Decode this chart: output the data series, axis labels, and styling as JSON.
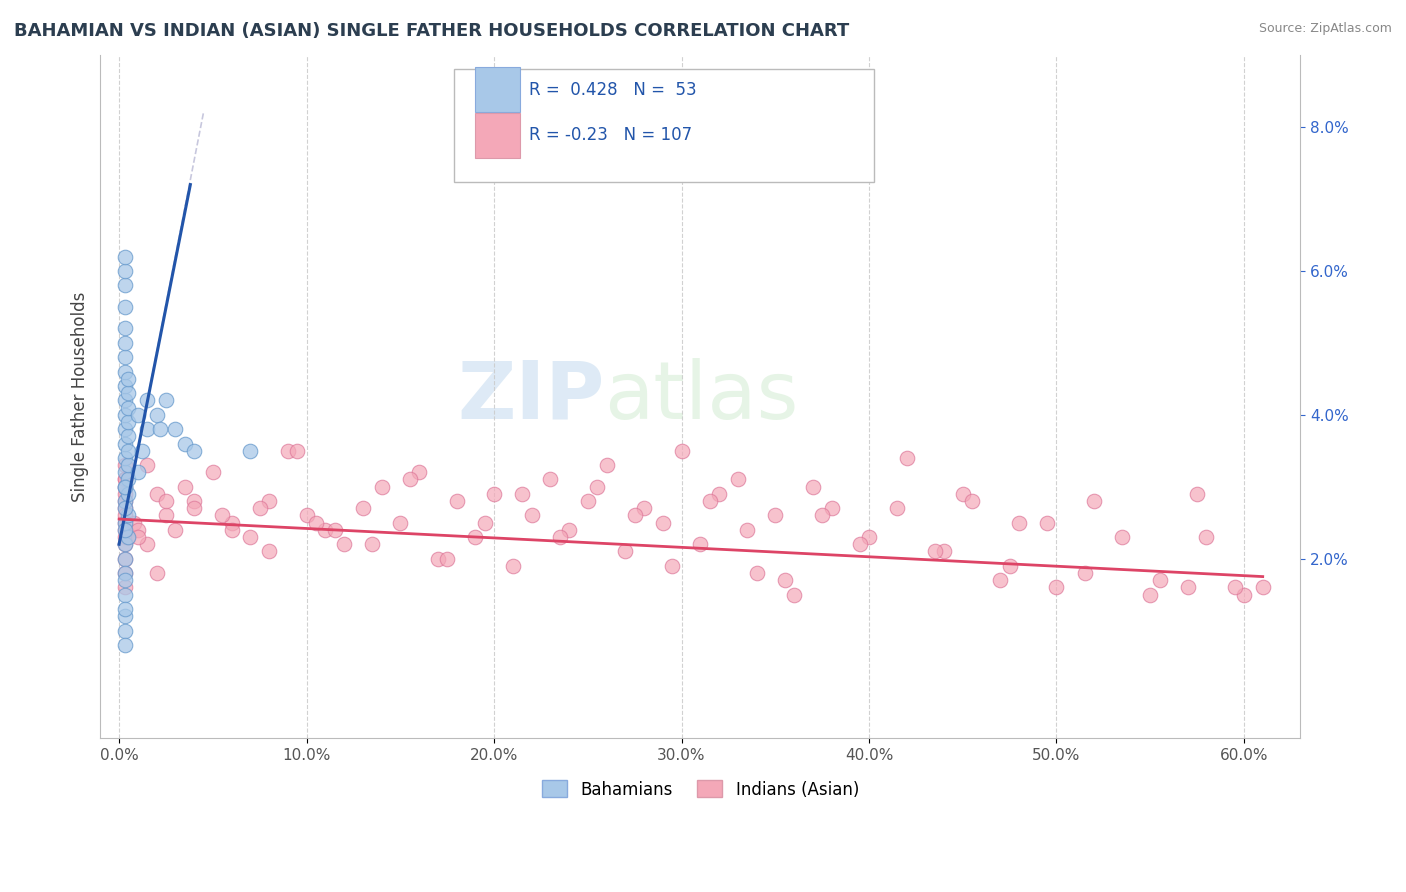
{
  "title": "BAHAMIAN VS INDIAN (ASIAN) SINGLE FATHER HOUSEHOLDS CORRELATION CHART",
  "source": "Source: ZipAtlas.com",
  "ylabel_val": "Single Father Households",
  "x_tick_labels": [
    "0.0%",
    "10.0%",
    "20.0%",
    "30.0%",
    "40.0%",
    "50.0%",
    "60.0%"
  ],
  "x_tick_vals": [
    0,
    10,
    20,
    30,
    40,
    50,
    60
  ],
  "y_tick_labels": [
    "2.0%",
    "4.0%",
    "6.0%",
    "8.0%"
  ],
  "y_tick_vals": [
    2,
    4,
    6,
    8
  ],
  "xlim": [
    -1,
    63
  ],
  "ylim": [
    -0.5,
    9.0
  ],
  "r_blue": 0.428,
  "n_blue": 53,
  "r_pink": -0.23,
  "n_pink": 107,
  "blue_color": "#a8c8e8",
  "pink_color": "#f4a8b8",
  "blue_line_color": "#2255aa",
  "pink_line_color": "#dd4466",
  "legend_label_blue": "Bahamians",
  "legend_label_pink": "Indians (Asian)",
  "watermark_zip": "ZIP",
  "watermark_atlas": "atlas",
  "blue_scatter_x": [
    0.3,
    0.3,
    0.3,
    0.3,
    0.3,
    0.3,
    0.3,
    0.3,
    0.3,
    0.3,
    0.3,
    0.3,
    0.3,
    0.3,
    0.3,
    0.5,
    0.5,
    0.5,
    0.5,
    0.5,
    0.5,
    0.5,
    0.5,
    0.5,
    0.5,
    0.5,
    1.0,
    1.0,
    1.2,
    1.5,
    1.5,
    2.0,
    2.5,
    3.0,
    3.5,
    4.0,
    0.3,
    0.3,
    0.3,
    0.3,
    0.3,
    0.3,
    0.3,
    0.3,
    0.3,
    0.3,
    0.3,
    0.3,
    0.3,
    2.2,
    0.3,
    0.3,
    7.0
  ],
  "blue_scatter_y": [
    2.2,
    2.5,
    2.8,
    3.0,
    3.2,
    3.4,
    3.6,
    3.8,
    4.0,
    4.2,
    4.4,
    4.6,
    4.8,
    5.0,
    5.2,
    2.3,
    2.6,
    2.9,
    3.1,
    3.3,
    3.5,
    3.7,
    3.9,
    4.1,
    4.3,
    4.5,
    3.2,
    4.0,
    3.5,
    3.8,
    4.2,
    4.0,
    4.2,
    3.8,
    3.6,
    3.5,
    2.0,
    1.8,
    2.4,
    2.7,
    3.0,
    5.5,
    5.8,
    6.0,
    6.2,
    1.2,
    1.0,
    1.5,
    1.3,
    3.8,
    0.8,
    1.7,
    3.5
  ],
  "pink_scatter_x": [
    0.3,
    0.3,
    0.3,
    0.3,
    0.3,
    0.3,
    0.3,
    0.3,
    0.3,
    0.3,
    0.3,
    0.3,
    0.3,
    0.3,
    0.5,
    0.8,
    1.0,
    1.5,
    2.0,
    2.5,
    3.0,
    4.0,
    5.0,
    6.0,
    7.0,
    8.0,
    9.0,
    10.0,
    11.0,
    12.0,
    13.0,
    14.0,
    15.0,
    16.0,
    17.0,
    18.0,
    19.0,
    20.0,
    21.0,
    22.0,
    23.0,
    24.0,
    25.0,
    26.0,
    27.0,
    28.0,
    29.0,
    30.0,
    31.0,
    32.0,
    33.0,
    34.0,
    35.0,
    36.0,
    37.0,
    38.0,
    40.0,
    42.0,
    44.0,
    45.0,
    47.0,
    48.0,
    50.0,
    52.0,
    55.0,
    57.0,
    58.0,
    60.0,
    61.0,
    1.5,
    2.5,
    3.5,
    5.5,
    7.5,
    9.5,
    11.5,
    13.5,
    15.5,
    17.5,
    19.5,
    21.5,
    23.5,
    25.5,
    27.5,
    29.5,
    31.5,
    33.5,
    35.5,
    37.5,
    39.5,
    41.5,
    43.5,
    45.5,
    47.5,
    49.5,
    51.5,
    53.5,
    55.5,
    57.5,
    59.5,
    0.3,
    1.0,
    2.0,
    4.0,
    6.0,
    8.0,
    10.5
  ],
  "pink_scatter_y": [
    2.3,
    2.5,
    2.7,
    2.9,
    3.1,
    3.3,
    3.0,
    2.8,
    2.6,
    2.4,
    2.2,
    2.0,
    1.8,
    1.6,
    2.3,
    2.5,
    2.4,
    2.2,
    2.9,
    2.6,
    2.4,
    2.8,
    3.2,
    2.5,
    2.3,
    2.8,
    3.5,
    2.6,
    2.4,
    2.2,
    2.7,
    3.0,
    2.5,
    3.2,
    2.0,
    2.8,
    2.3,
    2.9,
    1.9,
    2.6,
    3.1,
    2.4,
    2.8,
    3.3,
    2.1,
    2.7,
    2.5,
    3.5,
    2.2,
    2.9,
    3.1,
    1.8,
    2.6,
    1.5,
    3.0,
    2.7,
    2.3,
    3.4,
    2.1,
    2.9,
    1.7,
    2.5,
    1.6,
    2.8,
    1.5,
    1.6,
    2.3,
    1.5,
    1.6,
    3.3,
    2.8,
    3.0,
    2.6,
    2.7,
    3.5,
    2.4,
    2.2,
    3.1,
    2.0,
    2.5,
    2.9,
    2.3,
    3.0,
    2.6,
    1.9,
    2.8,
    2.4,
    1.7,
    2.6,
    2.2,
    2.7,
    2.1,
    2.8,
    1.9,
    2.5,
    1.8,
    2.3,
    1.7,
    2.9,
    1.6,
    3.1,
    2.3,
    1.8,
    2.7,
    2.4,
    2.1,
    2.5
  ]
}
